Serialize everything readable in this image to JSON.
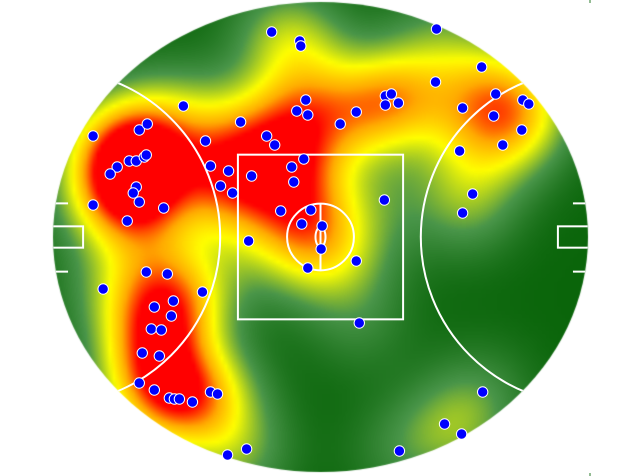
{
  "chart_data": {
    "type": "scatter",
    "heatmap_overlay": true,
    "title": "",
    "xlabel": "",
    "ylabel": "",
    "units": "metres",
    "xlim": [
      -80,
      80
    ],
    "ylim": [
      -70.5,
      70.5
    ],
    "grid": false,
    "legend": "none",
    "field": "oval",
    "colors": {
      "point_fill": "#0000ff",
      "point_stroke": "#ffffff",
      "lines": "#ffffff",
      "heat_low": "#0a650a",
      "heat_mid_low": "#4a964a",
      "heat_mid": "#ffff00",
      "heat_high": "#ff0000"
    },
    "points": [
      [
        -14.6,
        61.5
      ],
      [
        -6.2,
        58.8
      ],
      [
        -5.9,
        57.3
      ],
      [
        34.7,
        62.4
      ],
      [
        48.2,
        51.0
      ],
      [
        34.4,
        46.5
      ],
      [
        -41.0,
        39.3
      ],
      [
        -4.4,
        41.1
      ],
      [
        -7.1,
        37.8
      ],
      [
        -3.8,
        36.6
      ],
      [
        19.4,
        42.3
      ],
      [
        21.2,
        42.9
      ],
      [
        23.3,
        40.2
      ],
      [
        19.4,
        39.6
      ],
      [
        10.7,
        37.5
      ],
      [
        5.9,
        33.9
      ],
      [
        42.5,
        38.7
      ],
      [
        52.4,
        42.9
      ],
      [
        60.5,
        41.1
      ],
      [
        62.3,
        39.9
      ],
      [
        51.8,
        36.3
      ],
      [
        60.2,
        32.1
      ],
      [
        -68.0,
        30.3
      ],
      [
        -54.2,
        32.1
      ],
      [
        -51.8,
        33.9
      ],
      [
        -23.9,
        34.5
      ],
      [
        -16.1,
        30.3
      ],
      [
        -13.7,
        27.6
      ],
      [
        -34.4,
        28.8
      ],
      [
        41.6,
        25.8
      ],
      [
        54.5,
        27.6
      ],
      [
        -60.8,
        21.0
      ],
      [
        -62.9,
        18.9
      ],
      [
        -57.2,
        22.8
      ],
      [
        -55.1,
        22.8
      ],
      [
        -52.7,
        24.0
      ],
      [
        -52.1,
        24.6
      ],
      [
        -32.9,
        21.3
      ],
      [
        -27.5,
        19.8
      ],
      [
        -8.6,
        21.0
      ],
      [
        -5.0,
        23.4
      ],
      [
        -20.6,
        18.3
      ],
      [
        -29.9,
        15.3
      ],
      [
        -26.3,
        13.2
      ],
      [
        -55.1,
        15.0
      ],
      [
        -56.0,
        13.2
      ],
      [
        -54.2,
        10.5
      ],
      [
        -46.9,
        8.7
      ],
      [
        -8.0,
        16.5
      ],
      [
        19.1,
        11.1
      ],
      [
        45.5,
        12.9
      ],
      [
        42.5,
        7.2
      ],
      [
        -68.0,
        9.6
      ],
      [
        -57.8,
        4.8
      ],
      [
        -11.9,
        7.8
      ],
      [
        -2.9,
        8.1
      ],
      [
        -5.6,
        3.9
      ],
      [
        0.5,
        3.3
      ],
      [
        -21.5,
        -1.2
      ],
      [
        0.2,
        -3.6
      ],
      [
        -3.8,
        -9.3
      ],
      [
        10.7,
        -7.2
      ],
      [
        -52.1,
        -10.5
      ],
      [
        -45.8,
        -11.1
      ],
      [
        -65.0,
        -15.6
      ],
      [
        -35.3,
        -16.5
      ],
      [
        -44.0,
        -19.2
      ],
      [
        -49.7,
        -21.0
      ],
      [
        -44.6,
        -23.7
      ],
      [
        -50.6,
        -27.6
      ],
      [
        -47.6,
        -27.9
      ],
      [
        -53.3,
        -34.8
      ],
      [
        -48.2,
        -35.7
      ],
      [
        11.6,
        -25.8
      ],
      [
        -54.2,
        -43.8
      ],
      [
        -49.7,
        -45.9
      ],
      [
        -45.2,
        -48.3
      ],
      [
        -43.7,
        -48.6
      ],
      [
        -42.2,
        -48.6
      ],
      [
        -38.3,
        -49.5
      ],
      [
        -32.9,
        -46.5
      ],
      [
        -30.8,
        -47.1
      ],
      [
        48.5,
        -46.5
      ],
      [
        37.1,
        -56.1
      ],
      [
        42.2,
        -59.1
      ],
      [
        -22.1,
        -63.6
      ],
      [
        -27.8,
        -65.4
      ],
      [
        23.6,
        -64.2
      ]
    ]
  }
}
